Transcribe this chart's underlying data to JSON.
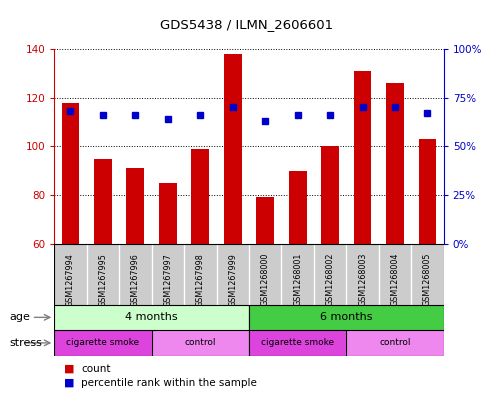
{
  "title": "GDS5438 / ILMN_2606601",
  "samples": [
    "GSM1267994",
    "GSM1267995",
    "GSM1267996",
    "GSM1267997",
    "GSM1267998",
    "GSM1267999",
    "GSM1268000",
    "GSM1268001",
    "GSM1268002",
    "GSM1268003",
    "GSM1268004",
    "GSM1268005"
  ],
  "counts": [
    118,
    95,
    91,
    85,
    99,
    138,
    79,
    90,
    100,
    131,
    126,
    103
  ],
  "percentile_ranks": [
    68,
    66,
    66,
    64,
    66,
    70,
    63,
    66,
    66,
    70,
    70,
    67
  ],
  "ylim_left": [
    60,
    140
  ],
  "ylim_right": [
    0,
    100
  ],
  "yticks_left": [
    60,
    80,
    100,
    120,
    140
  ],
  "yticks_right": [
    0,
    25,
    50,
    75,
    100
  ],
  "ytick_labels_right": [
    "0%",
    "25%",
    "50%",
    "75%",
    "100%"
  ],
  "bar_color": "#cc0000",
  "dot_color": "#0000cc",
  "age_4_color": "#ccffcc",
  "age_6_color": "#44cc44",
  "stress_cig_color": "#dd44dd",
  "stress_ctrl_color": "#ee88ee",
  "sample_box_color": "#cccccc",
  "grid_style": "dotted"
}
